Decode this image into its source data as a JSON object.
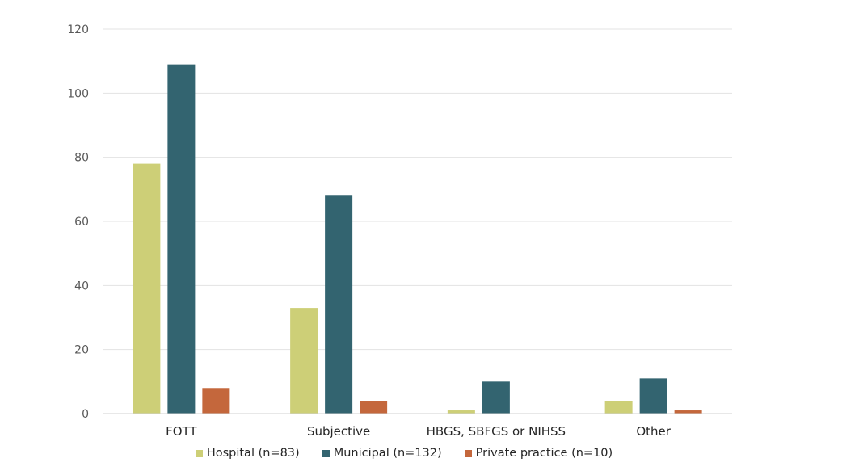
{
  "chart_data": {
    "type": "bar",
    "categories": [
      "FOTT",
      "Subjective",
      "HBGS, SBFGS or NIHSS",
      "Other"
    ],
    "series": [
      {
        "name": "Hospital (n=83)",
        "color": "#cdcf77",
        "values": [
          78,
          33,
          1,
          4
        ]
      },
      {
        "name": "Municipal (n=132)",
        "color": "#336470",
        "values": [
          109,
          68,
          10,
          11
        ]
      },
      {
        "name": "Private practice (n=10)",
        "color": "#c4673c",
        "values": [
          8,
          4,
          0,
          1
        ]
      }
    ],
    "ylim": [
      0,
      120
    ],
    "yticks": [
      "0",
      "20",
      "40",
      "60",
      "80",
      "100",
      "120"
    ],
    "grid": true,
    "legend_position": "bottom",
    "title": "",
    "xlabel": "",
    "ylabel": ""
  }
}
